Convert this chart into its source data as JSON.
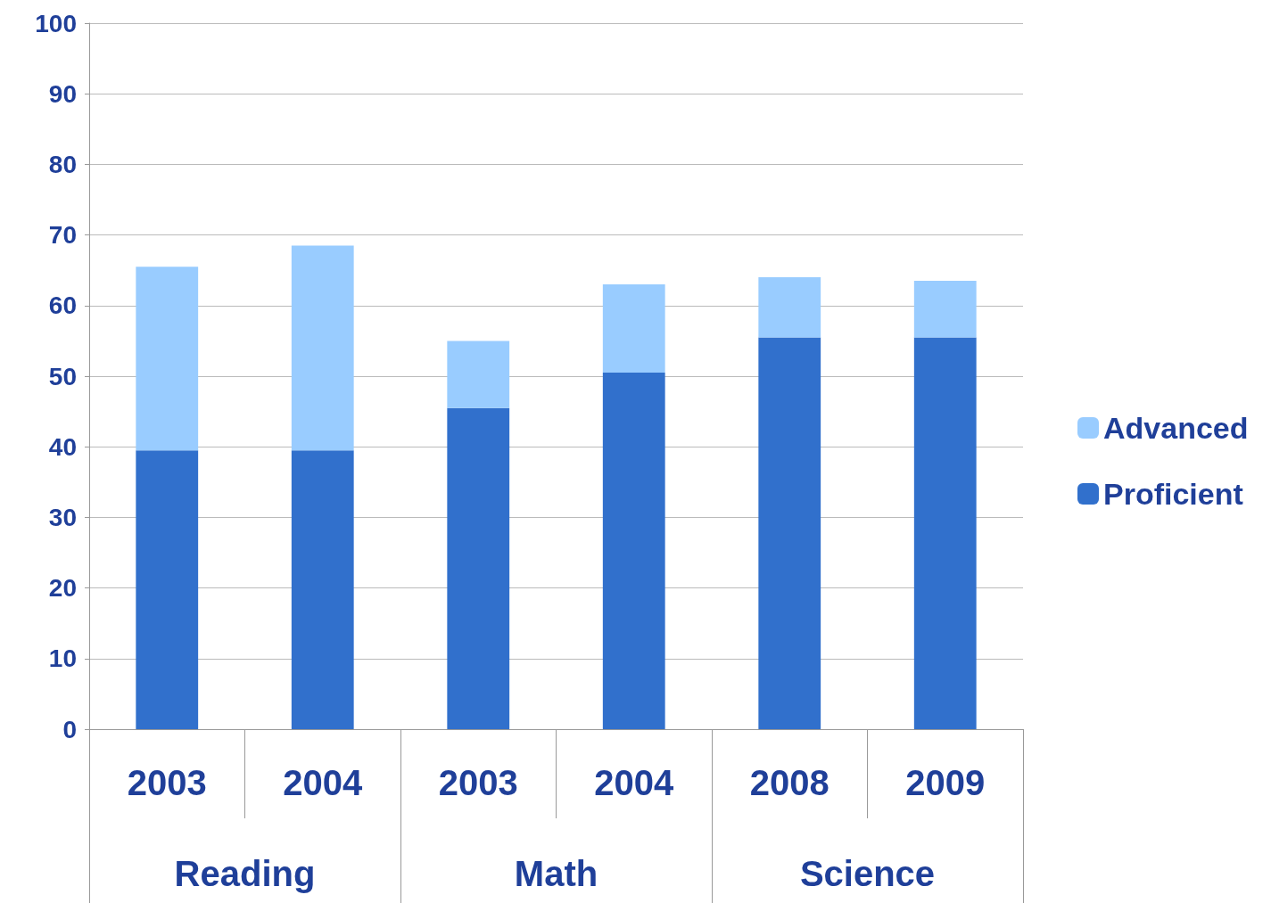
{
  "chart_data": {
    "type": "bar",
    "stacked": true,
    "categories": [
      "2003",
      "2004",
      "2003",
      "2004",
      "2008",
      "2009"
    ],
    "annotations": [
      "Reading",
      "Math",
      "Science"
    ],
    "series": [
      {
        "name": "Proficient",
        "color": "#3170cc",
        "values": [
          39.5,
          39.5,
          45.5,
          50.5,
          55.5,
          55.5
        ]
      },
      {
        "name": "Advanced",
        "color": "#99ccff",
        "values": [
          26,
          29,
          9.5,
          12.5,
          8.5,
          8
        ]
      }
    ],
    "ylim": [
      0,
      100
    ],
    "yticks": [
      0,
      10,
      20,
      30,
      40,
      50,
      60,
      70,
      80,
      90,
      100
    ],
    "grid": "y",
    "legend": "right"
  }
}
